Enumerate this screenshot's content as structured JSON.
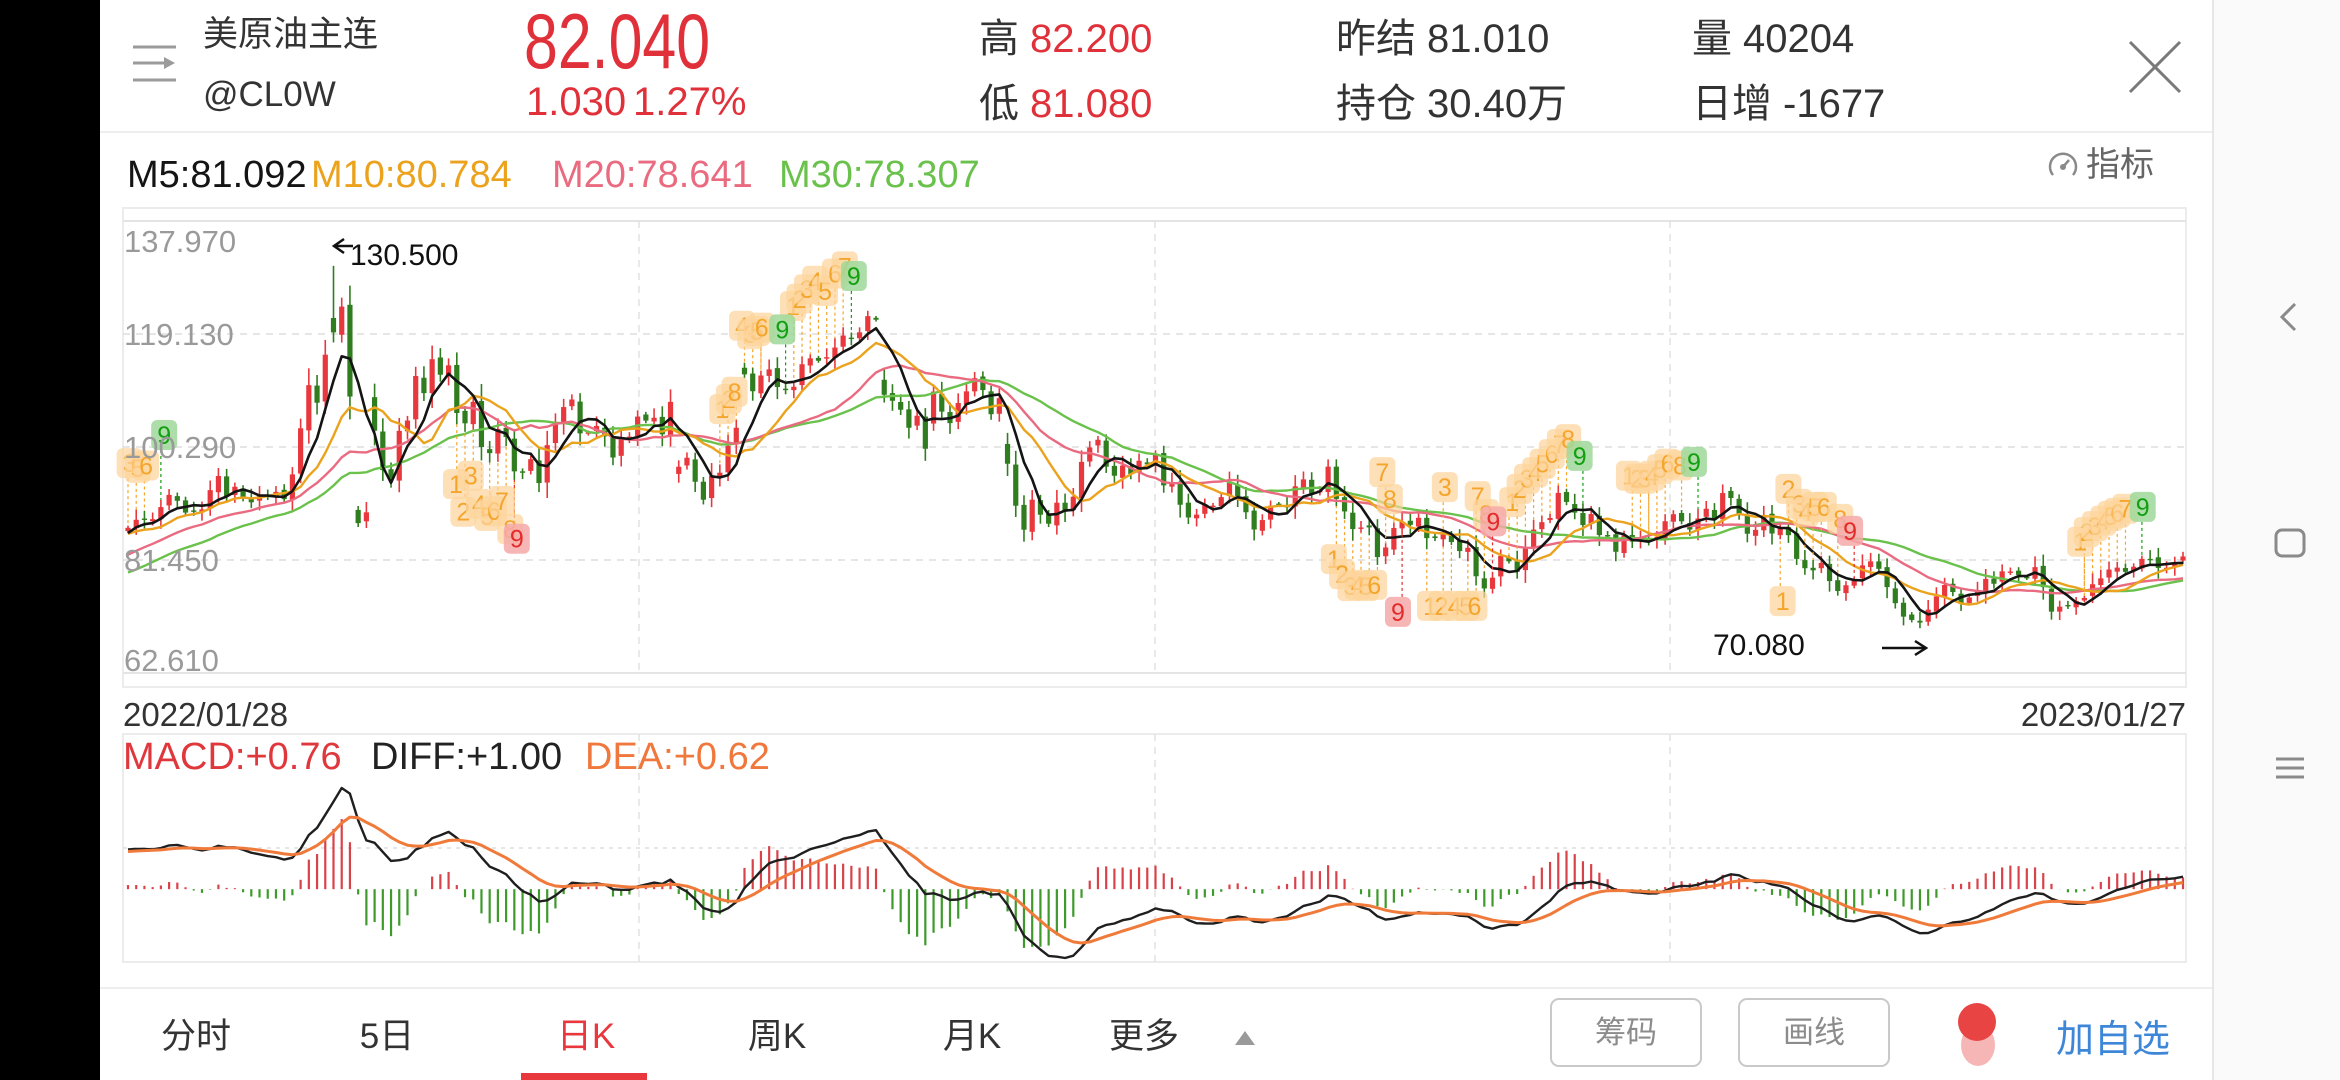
{
  "header": {
    "menu_icon": "list-arrow-icon",
    "instrument_name": "美原油主连",
    "symbol": "@CL0W",
    "last_price": "82.040",
    "change": "1.030",
    "change_pct": "1.27%",
    "stats": [
      {
        "label": "高",
        "value": "82.200",
        "tone": "up"
      },
      {
        "label": "低",
        "value": "81.080",
        "tone": "up"
      },
      {
        "label": "昨结",
        "value": "81.010",
        "tone": "neutral"
      },
      {
        "label": "持仓",
        "value": "30.40万",
        "tone": "neutral"
      },
      {
        "label": "量",
        "value": "40204",
        "tone": "neutral"
      },
      {
        "label": "日增",
        "value": "-1677",
        "tone": "neutral"
      }
    ],
    "close_icon": "close-icon"
  },
  "indicator_button": {
    "label": "指标",
    "icon": "gauge-icon"
  },
  "ma_legend": [
    {
      "text": "M5:81.092",
      "period": 5,
      "value": 81.092
    },
    {
      "text": "M10:80.784",
      "period": 10,
      "value": 80.784
    },
    {
      "text": "M20:78.641",
      "period": 20,
      "value": 78.641
    },
    {
      "text": "M30:78.307",
      "period": 30,
      "value": 78.307
    }
  ],
  "price_axis": {
    "ticks": [
      "137.970",
      "119.130",
      "100.290",
      "81.450",
      "62.610"
    ]
  },
  "annotations": {
    "high": {
      "label": "130.500",
      "arrow": "left-arrow-icon"
    },
    "low": {
      "label": "70.080",
      "arrow": "right-arrow-icon"
    }
  },
  "date_range": {
    "start": "2022/01/28",
    "end": "2023/01/27"
  },
  "macd_legend": {
    "macd": "MACD:+0.76",
    "diff": "DIFF:+1.00",
    "dea": "DEA:+0.62"
  },
  "tabs": [
    {
      "label": "分时",
      "active": false
    },
    {
      "label": "5日",
      "active": false
    },
    {
      "label": "日K",
      "active": true
    },
    {
      "label": "周K",
      "active": false
    },
    {
      "label": "月K",
      "active": false
    }
  ],
  "more_tab": {
    "label": "更多",
    "icon": "triangle-up-icon"
  },
  "buttons": {
    "chips": "筹码",
    "draw": "画线",
    "add_watchlist": "加自选"
  },
  "nav": {
    "back": "chevron-left-icon",
    "home": "square-icon",
    "recents": "menu-lines-icon"
  },
  "colors": {
    "up": "#e8383d",
    "down": "#2f7d1e",
    "ma5": "#141414",
    "ma10": "#eba21d",
    "ma20": "#ea6b80",
    "ma30": "#6ac14b",
    "diff": "#1f1f1f",
    "dea": "#f07a3a",
    "macd_up": "#d8434a",
    "macd_down": "#3d9a2b",
    "td_orange": "#f5a52c",
    "td_orange_bg": "#fcd49b",
    "td_green": "#12a012",
    "td_green_bg": "#9fd89a",
    "td_red": "#e42b2b",
    "td_red_bg": "#f6a9a9",
    "accent_red": "#e0313a",
    "link_blue": "#3d86d8"
  },
  "chart_data": {
    "type": "candlestick",
    "title": "美原油主连 日K",
    "x_start": "2022/01/28",
    "x_end": "2023/01/27",
    "ylim": [
      62.61,
      137.97
    ],
    "yticks": [
      137.97,
      119.13,
      100.29,
      81.45,
      62.61
    ],
    "grid": true,
    "ma_periods": [
      5,
      10,
      20,
      30
    ],
    "ma_legend_values": {
      "M5": 81.092,
      "M10": 80.784,
      "M20": 78.641,
      "M30": 78.307
    },
    "extremes": {
      "high": {
        "index": 25,
        "value": 130.5
      },
      "low": {
        "index": 218,
        "value": 70.08
      }
    },
    "close": [
      86.82,
      88.15,
      88.2,
      88.26,
      90.27,
      92.31,
      91.32,
      89.36,
      89.66,
      89.88,
      93.1,
      95.46,
      92.07,
      93.66,
      91.76,
      91.07,
      92.35,
      92.1,
      92.81,
      91.59,
      95.72,
      103.41,
      110.6,
      107.67,
      115.68,
      119.4,
      123.7,
      108.7,
      87.6,
      89.4,
      103.01,
      96.44,
      95.04,
      102.98,
      104.7,
      112.12,
      109.27,
      114.93,
      112.34,
      113.9,
      105.96,
      104.24,
      107.82,
      100.28,
      99.27,
      103.28,
      101.96,
      96.23,
      96.03,
      98.26,
      94.29,
      100.6,
      104.25,
      106.95,
      108.21,
      102.56,
      102.75,
      103.79,
      102.07,
      98.54,
      101.7,
      102.02,
      105.36,
      104.69,
      105.17,
      102.41,
      107.81,
      97.0,
      98.5,
      94.5,
      91.5,
      95.5,
      96.0,
      100.5,
      103.5,
      112.4,
      109.59,
      112.21,
      113.23,
      110.29,
      109.77,
      110.33,
      114.09,
      115.07,
      114.67,
      115.26,
      116.87,
      118.87,
      118.5,
      119.41,
      122.11,
      121.51,
      109.0,
      108.0,
      106.5,
      103.5,
      105.5,
      100.0,
      109.52,
      106.19,
      104.27,
      107.62,
      109.57,
      111.76,
      109.78,
      105.76,
      108.43,
      97.5,
      90.5,
      86.5,
      91.5,
      89.0,
      87.5,
      91.0,
      89.5,
      92.0,
      97.8,
      100.2,
      101.5,
      97.0,
      95.5,
      97.2,
      95.8,
      98.0,
      97.4,
      99.0,
      93.89,
      94.42,
      90.66,
      88.54,
      89.01,
      90.76,
      90.5,
      91.93,
      94.34,
      92.09,
      89.41,
      86.53,
      88.11,
      90.5,
      90.77,
      90.23,
      93.74,
      94.89,
      92.52,
      93.06,
      97.01,
      91.64,
      89.55,
      86.61,
      86.87,
      86.88,
      81.94,
      83.54,
      86.79,
      87.78,
      87.31,
      88.48,
      85.1,
      85.11,
      85.73,
      84.45,
      82.94,
      83.49,
      78.74,
      76.71,
      78.5,
      82.15,
      81.23,
      79.49,
      83.63,
      86.52,
      87.76,
      88.45,
      92.64,
      91.13,
      89.35,
      87.27,
      89.11,
      85.61,
      85.46,
      82.82,
      85.55,
      84.51,
      85.05,
      84.58,
      85.32,
      87.91,
      89.08,
      87.9,
      86.53,
      88.37,
      90.0,
      88.17,
      92.61,
      91.79,
      88.91,
      85.83,
      86.47,
      88.96,
      85.87,
      86.92,
      85.59,
      81.64,
      80.08,
      79.73,
      80.95,
      77.94,
      76.28,
      77.24,
      78.2,
      80.55,
      81.22,
      79.98,
      76.93,
      74.25,
      72.01,
      71.46,
      71.02,
      73.17,
      75.39,
      77.28,
      76.11,
      74.29,
      75.19,
      76.23,
      78.29,
      77.49,
      79.56,
      79.53,
      78.96,
      78.4,
      80.26,
      76.93,
      72.84,
      73.67,
      73.77,
      74.63,
      75.12,
      77.41,
      78.39,
      79.86,
      80.18,
      79.48,
      80.33,
      81.64,
      81.62,
      80.13,
      80.15,
      81.01,
      82.04
    ],
    "open_overrides": {
      "25": 121.8,
      "26": 119.0,
      "27": 124.0,
      "28": 89.8,
      "29": 87.9,
      "30": 108.6,
      "67": 95.8,
      "75": 113.5,
      "92": 111.5,
      "98": 104.2,
      "107": 100.8
    },
    "high_overrides": {
      "25": 130.5
    },
    "low_overrides": {
      "218": 70.08
    },
    "ma_warmup_close": [
      72.38,
      70.86,
      68.23,
      71.12,
      72.76,
      73.79,
      75.57,
      75.98,
      76.56,
      76.99,
      75.21,
      76.08,
      76.99,
      77.85,
      79.46,
      78.9,
      78.23,
      81.22,
      82.64,
      82.12,
      83.82,
      85.43,
      86.96,
      86.9,
      85.14,
      83.31,
      85.6,
      87.35,
      86.61
    ],
    "macd": {
      "fast": 12,
      "slow": 26,
      "signal": 9,
      "last": {
        "MACD": 0.76,
        "DIFF": 1.0,
        "DEA": 0.62
      }
    },
    "td_markers": [
      {
        "i": 0.2,
        "p": 97.6,
        "t": "3",
        "k": "o"
      },
      {
        "i": 1.2,
        "p": 96.8,
        "t": "5",
        "k": "o"
      },
      {
        "i": 2.2,
        "p": 97.2,
        "t": "6",
        "k": "o"
      },
      {
        "i": 4.4,
        "p": 102.3,
        "t": "9",
        "k": "g"
      },
      {
        "i": 39.9,
        "p": 94.1,
        "t": "1",
        "k": "o"
      },
      {
        "i": 41.7,
        "p": 95.5,
        "t": "3",
        "k": "o"
      },
      {
        "i": 40.8,
        "p": 89.5,
        "t": "2",
        "k": "o"
      },
      {
        "i": 42.7,
        "p": 90.8,
        "t": "4",
        "k": "o"
      },
      {
        "i": 43.7,
        "p": 88.8,
        "t": "5",
        "k": "o"
      },
      {
        "i": 44.5,
        "p": 89.6,
        "t": "6",
        "k": "o"
      },
      {
        "i": 45.5,
        "p": 91.3,
        "t": "7",
        "k": "o"
      },
      {
        "i": 46.5,
        "p": 86.6,
        "t": "8",
        "k": "o"
      },
      {
        "i": 47.3,
        "p": 85.0,
        "t": "9",
        "k": "r"
      },
      {
        "i": 72.3,
        "p": 106.6,
        "t": "1",
        "k": "o"
      },
      {
        "i": 73.1,
        "p": 108.3,
        "t": "2",
        "k": "o"
      },
      {
        "i": 73.8,
        "p": 109.5,
        "t": "8",
        "k": "o"
      },
      {
        "i": 74.7,
        "p": 120.5,
        "t": "4",
        "k": "o"
      },
      {
        "i": 75.7,
        "p": 119.1,
        "t": "3",
        "k": "o"
      },
      {
        "i": 76.5,
        "p": 119.6,
        "t": "5",
        "k": "o"
      },
      {
        "i": 77.1,
        "p": 120.2,
        "t": "6",
        "k": "o"
      },
      {
        "i": 79.6,
        "p": 119.9,
        "t": "9",
        "k": "g"
      },
      {
        "i": 80.9,
        "p": 123.8,
        "t": "1",
        "k": "o"
      },
      {
        "i": 81.7,
        "p": 125.0,
        "t": "2",
        "k": "o"
      },
      {
        "i": 82.6,
        "p": 126.6,
        "t": "3",
        "k": "o"
      },
      {
        "i": 83.6,
        "p": 128.0,
        "t": "4",
        "k": "o"
      },
      {
        "i": 84.8,
        "p": 126.3,
        "t": "5",
        "k": "o"
      },
      {
        "i": 86.0,
        "p": 129.2,
        "t": "6",
        "k": "o"
      },
      {
        "i": 87.2,
        "p": 130.4,
        "t": "7",
        "k": "o"
      },
      {
        "i": 88.3,
        "p": 128.8,
        "t": "9",
        "k": "g"
      },
      {
        "i": 146.7,
        "p": 81.6,
        "t": "1",
        "k": "o"
      },
      {
        "i": 147.7,
        "p": 79.1,
        "t": "2",
        "k": "o"
      },
      {
        "i": 148.7,
        "p": 77.1,
        "t": "3",
        "k": "o"
      },
      {
        "i": 149.6,
        "p": 77.3,
        "t": "4",
        "k": "o"
      },
      {
        "i": 150.6,
        "p": 77.1,
        "t": "5",
        "k": "o"
      },
      {
        "i": 151.6,
        "p": 77.3,
        "t": "6",
        "k": "o"
      },
      {
        "i": 152.6,
        "p": 96.1,
        "t": "7",
        "k": "o"
      },
      {
        "i": 153.5,
        "p": 91.6,
        "t": "8",
        "k": "o"
      },
      {
        "i": 154.5,
        "p": 72.8,
        "t": "9",
        "k": "r"
      },
      {
        "i": 160.2,
        "p": 93.6,
        "t": "3",
        "k": "o"
      },
      {
        "i": 164.2,
        "p": 92.1,
        "t": "7",
        "k": "o"
      },
      {
        "i": 165.2,
        "p": 89.1,
        "t": "8",
        "k": "o"
      },
      {
        "i": 166.1,
        "p": 87.9,
        "t": "9",
        "k": "r"
      },
      {
        "i": 158.4,
        "p": 73.8,
        "t": "1",
        "k": "o"
      },
      {
        "i": 159.8,
        "p": 73.8,
        "t": "2",
        "k": "o"
      },
      {
        "i": 161.4,
        "p": 73.8,
        "t": "4",
        "k": "o"
      },
      {
        "i": 162.8,
        "p": 73.8,
        "t": "5",
        "k": "o"
      },
      {
        "i": 163.8,
        "p": 73.8,
        "t": "6",
        "k": "o"
      },
      {
        "i": 168.4,
        "p": 91.1,
        "t": "1",
        "k": "o"
      },
      {
        "i": 169.3,
        "p": 93.3,
        "t": "2",
        "k": "o"
      },
      {
        "i": 170.2,
        "p": 95.0,
        "t": "3",
        "k": "o"
      },
      {
        "i": 171.2,
        "p": 96.1,
        "t": "4",
        "k": "o"
      },
      {
        "i": 172.1,
        "p": 97.5,
        "t": "5",
        "k": "o"
      },
      {
        "i": 173.2,
        "p": 99.1,
        "t": "6",
        "k": "o"
      },
      {
        "i": 174.2,
        "p": 100.8,
        "t": "7",
        "k": "o"
      },
      {
        "i": 175.2,
        "p": 101.6,
        "t": "8",
        "k": "o"
      },
      {
        "i": 176.6,
        "p": 98.8,
        "t": "9",
        "k": "g"
      },
      {
        "i": 182.6,
        "p": 95.5,
        "t": "1",
        "k": "o"
      },
      {
        "i": 183.6,
        "p": 95.0,
        "t": "2",
        "k": "o"
      },
      {
        "i": 184.5,
        "p": 95.0,
        "t": "3",
        "k": "o"
      },
      {
        "i": 185.4,
        "p": 95.5,
        "t": "4",
        "k": "o"
      },
      {
        "i": 186.4,
        "p": 96.6,
        "t": "5",
        "k": "o"
      },
      {
        "i": 187.3,
        "p": 97.5,
        "t": "6",
        "k": "o"
      },
      {
        "i": 188.8,
        "p": 97.2,
        "t": "8",
        "k": "o"
      },
      {
        "i": 190.5,
        "p": 97.8,
        "t": "9",
        "k": "g"
      },
      {
        "i": 202.0,
        "p": 93.3,
        "t": "2",
        "k": "o"
      },
      {
        "i": 203.3,
        "p": 90.8,
        "t": "3",
        "k": "o"
      },
      {
        "i": 204.1,
        "p": 89.5,
        "t": "4",
        "k": "o"
      },
      {
        "i": 205.2,
        "p": 90.3,
        "t": "5",
        "k": "o"
      },
      {
        "i": 206.3,
        "p": 90.3,
        "t": "6",
        "k": "o"
      },
      {
        "i": 208.3,
        "p": 88.3,
        "t": "8",
        "k": "o"
      },
      {
        "i": 209.5,
        "p": 86.3,
        "t": "9",
        "k": "r"
      },
      {
        "i": 201.3,
        "p": 74.6,
        "t": "1",
        "k": "o"
      },
      {
        "i": 237.5,
        "p": 84.5,
        "t": "1",
        "k": "o"
      },
      {
        "i": 238.3,
        "p": 86.1,
        "t": "2",
        "k": "o"
      },
      {
        "i": 239.3,
        "p": 87.1,
        "t": "3",
        "k": "o"
      },
      {
        "i": 240.3,
        "p": 88.0,
        "t": "4",
        "k": "o"
      },
      {
        "i": 241.2,
        "p": 88.8,
        "t": "5",
        "k": "o"
      },
      {
        "i": 242.0,
        "p": 89.3,
        "t": "6",
        "k": "o"
      },
      {
        "i": 243.0,
        "p": 90.0,
        "t": "7",
        "k": "o"
      },
      {
        "i": 245.1,
        "p": 90.3,
        "t": "9",
        "k": "g"
      }
    ]
  }
}
